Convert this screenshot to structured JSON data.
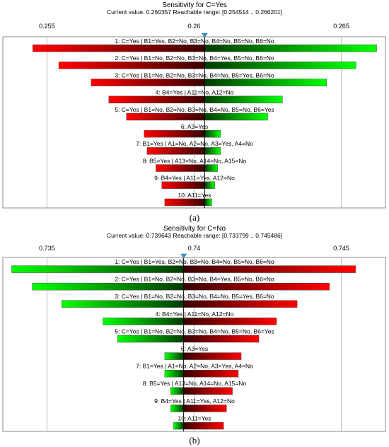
{
  "chart_data": [
    {
      "type": "bar",
      "subtype": "tornado",
      "title": "Sensitivity for C=Yes",
      "subtitle": "Current value: 0.260357  Reachable range: [0.254514 .. 0.266201]",
      "caption": "(a)",
      "current_value": 0.260357,
      "xlim": [
        0.2535,
        0.2665
      ],
      "xticks": [
        "0.255",
        "0.26",
        "0.265"
      ],
      "xtick_values": [
        0.255,
        0.26,
        0.265
      ],
      "low_color": "#ff0000",
      "high_color": "#00ff00",
      "bars": [
        {
          "label": "1: C=Yes | B1=Yes, B2=No, B3=No, B4=No, B5=No, B6=No",
          "min": 0.254514,
          "max": 0.266201
        },
        {
          "label": "2: C=Yes | B1=No, B2=No, B3=No, B4=Yes, B5=No, B6=No",
          "min": 0.2554,
          "max": 0.2655
        },
        {
          "label": "3: C=Yes | B1=No, B2=No, B3=No, B4=No, B5=Yes, B6=No",
          "min": 0.2565,
          "max": 0.2645
        },
        {
          "label": "4: B4=Yes | A11=No, A12=No",
          "min": 0.2571,
          "max": 0.263
        },
        {
          "label": "5: C=Yes | B1=No, B2=No, B3=No, B4=No, B5=No, B6=Yes",
          "min": 0.2577,
          "max": 0.2625
        },
        {
          "label": "6: A3=Yes",
          "min": 0.2583,
          "max": 0.2609
        },
        {
          "label": "7: B1=Yes | A1=No, A2=No, A3=Yes, A4=No",
          "min": 0.2584,
          "max": 0.2609
        },
        {
          "label": "8: B5=Yes | A13=No, A14=No, A15=No",
          "min": 0.2587,
          "max": 0.2608
        },
        {
          "label": "9: B4=Yes | A11=Yes, A12=No",
          "min": 0.2589,
          "max": 0.2607
        },
        {
          "label": "10: A11=Yes",
          "min": 0.259,
          "max": 0.2606
        }
      ]
    },
    {
      "type": "bar",
      "subtype": "tornado",
      "title": "Sensitivity for C=No",
      "subtitle": "Current value: 0.739643  Reachable range: [0.733799 .. 0.745486]",
      "caption": "(b)",
      "current_value": 0.739643,
      "xlim": [
        0.7335,
        0.7465
      ],
      "xticks": [
        "0.735",
        "0.74",
        "0.745"
      ],
      "xtick_values": [
        0.735,
        0.74,
        0.745
      ],
      "low_color": "#00ff00",
      "high_color": "#ff0000",
      "bars": [
        {
          "label": "1: C=Yes | B1=Yes, B2=No, B3=No, B4=No, B5=No, B6=No",
          "min": 0.733799,
          "max": 0.745486
        },
        {
          "label": "2: C=Yes | B1=No, B2=No, B3=No, B4=Yes, B5=No, B6=No",
          "min": 0.7345,
          "max": 0.7446
        },
        {
          "label": "3: C=Yes | B1=No, B2=No, B3=No, B4=No, B5=Yes, B6=No",
          "min": 0.7355,
          "max": 0.7435
        },
        {
          "label": "4: B4=Yes | A11=No, A12=No",
          "min": 0.7369,
          "max": 0.7428
        },
        {
          "label": "5: C=Yes | B1=No, B2=No, B3=No, B4=No, B5=No, B6=Yes",
          "min": 0.7374,
          "max": 0.7422
        },
        {
          "label": "6: A3=Yes",
          "min": 0.739,
          "max": 0.7416
        },
        {
          "label": "7: B1=Yes | A1=No, A2=No, A3=Yes, A4=No",
          "min": 0.739,
          "max": 0.7415
        },
        {
          "label": "8: B5=Yes | A13=No, A14=No, A15=No",
          "min": 0.7392,
          "max": 0.7413
        },
        {
          "label": "9: B4=Yes | A11=Yes, A12=No",
          "min": 0.7392,
          "max": 0.7411
        },
        {
          "label": "10: A11=Yes",
          "min": 0.7393,
          "max": 0.741
        }
      ]
    }
  ]
}
